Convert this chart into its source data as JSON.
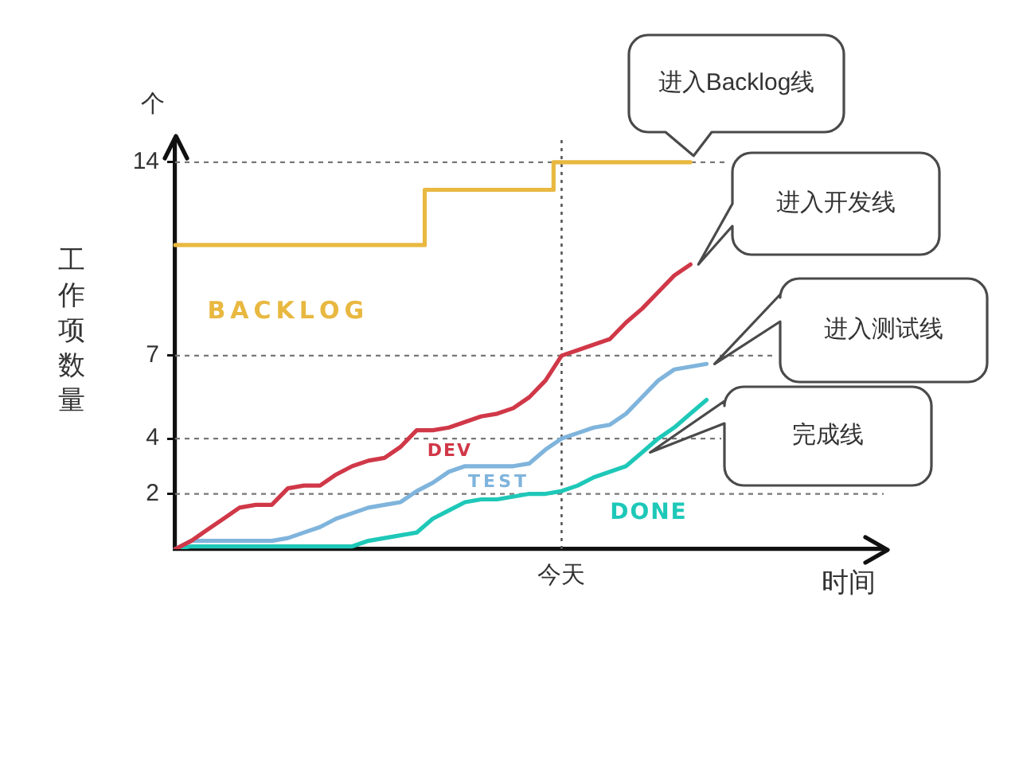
{
  "chart_data": {
    "type": "line",
    "xlabel": "时间",
    "ylabel": "工作项数量",
    "annotations": [
      "进入Backlog线",
      "进入开发线",
      "进入测试线",
      "完成线",
      "个"
    ],
    "categories": [
      null,
      null,
      null,
      null,
      null,
      null,
      null,
      null,
      null,
      null,
      null,
      null,
      null,
      null,
      null,
      null,
      null,
      null,
      null,
      null,
      null,
      null,
      null,
      null,
      "今天",
      null,
      null,
      null,
      null,
      null,
      null,
      null,
      null,
      null,
      null,
      null,
      null,
      null,
      null,
      null,
      null,
      null,
      null,
      null,
      null
    ],
    "ylim": [
      0,
      14.8
    ],
    "yticks": [
      2,
      4,
      7,
      14
    ],
    "grid": "y",
    "legend": false,
    "marker": "none",
    "ref_lines": [
      {
        "axis": "x",
        "value": "今天",
        "line_style": "dotted"
      }
    ],
    "series": [
      {
        "name": "BACKLOG",
        "type": "step",
        "color": "#e8b840",
        "values": [
          11,
          11,
          11,
          11,
          11,
          11,
          11,
          11,
          11,
          11,
          11,
          11,
          11,
          11,
          11,
          11,
          13,
          13,
          13,
          13,
          13,
          13,
          13,
          13,
          14,
          14,
          14,
          14,
          14,
          14,
          14,
          14,
          14,
          null,
          null,
          null,
          null,
          null,
          null,
          null,
          null,
          null,
          null,
          null,
          null
        ]
      },
      {
        "name": "DEV",
        "color": "#d03848",
        "values": [
          0,
          0.3,
          0.7,
          1.1,
          1.5,
          1.6,
          1.6,
          2.2,
          2.3,
          2.3,
          2.7,
          3.0,
          3.2,
          3.3,
          3.7,
          4.3,
          4.3,
          4.4,
          4.6,
          4.8,
          4.9,
          5.1,
          5.5,
          6.1,
          7.0,
          7.2,
          7.4,
          7.6,
          8.2,
          8.7,
          9.3,
          9.9,
          10.3,
          null,
          null,
          null,
          null,
          null,
          null,
          null,
          null,
          null,
          null,
          null,
          null
        ]
      },
      {
        "name": "TEST",
        "color": "#7fb4dc",
        "values": [
          0,
          0.3,
          0.3,
          0.3,
          0.3,
          0.3,
          0.3,
          0.4,
          0.6,
          0.8,
          1.1,
          1.3,
          1.5,
          1.6,
          1.7,
          2.1,
          2.4,
          2.8,
          3.0,
          3.0,
          3.0,
          3.0,
          3.1,
          3.6,
          4.0,
          4.2,
          4.4,
          4.5,
          4.9,
          5.5,
          6.1,
          6.5,
          6.6,
          6.7,
          null,
          null,
          null,
          null,
          null,
          null,
          null,
          null,
          null,
          null,
          null
        ]
      },
      {
        "name": "DONE",
        "color": "#1ec8b8",
        "values": [
          0,
          0.1,
          0.1,
          0.1,
          0.1,
          0.1,
          0.1,
          0.1,
          0.1,
          0.1,
          0.1,
          0.1,
          0.3,
          0.4,
          0.5,
          0.6,
          1.1,
          1.4,
          1.7,
          1.8,
          1.8,
          1.9,
          2.0,
          2.0,
          2.1,
          2.3,
          2.6,
          2.8,
          3.0,
          3.5,
          4.0,
          4.4,
          4.9,
          5.4,
          null,
          null,
          null,
          null,
          null,
          null,
          null,
          null,
          null,
          null,
          null
        ]
      }
    ]
  }
}
